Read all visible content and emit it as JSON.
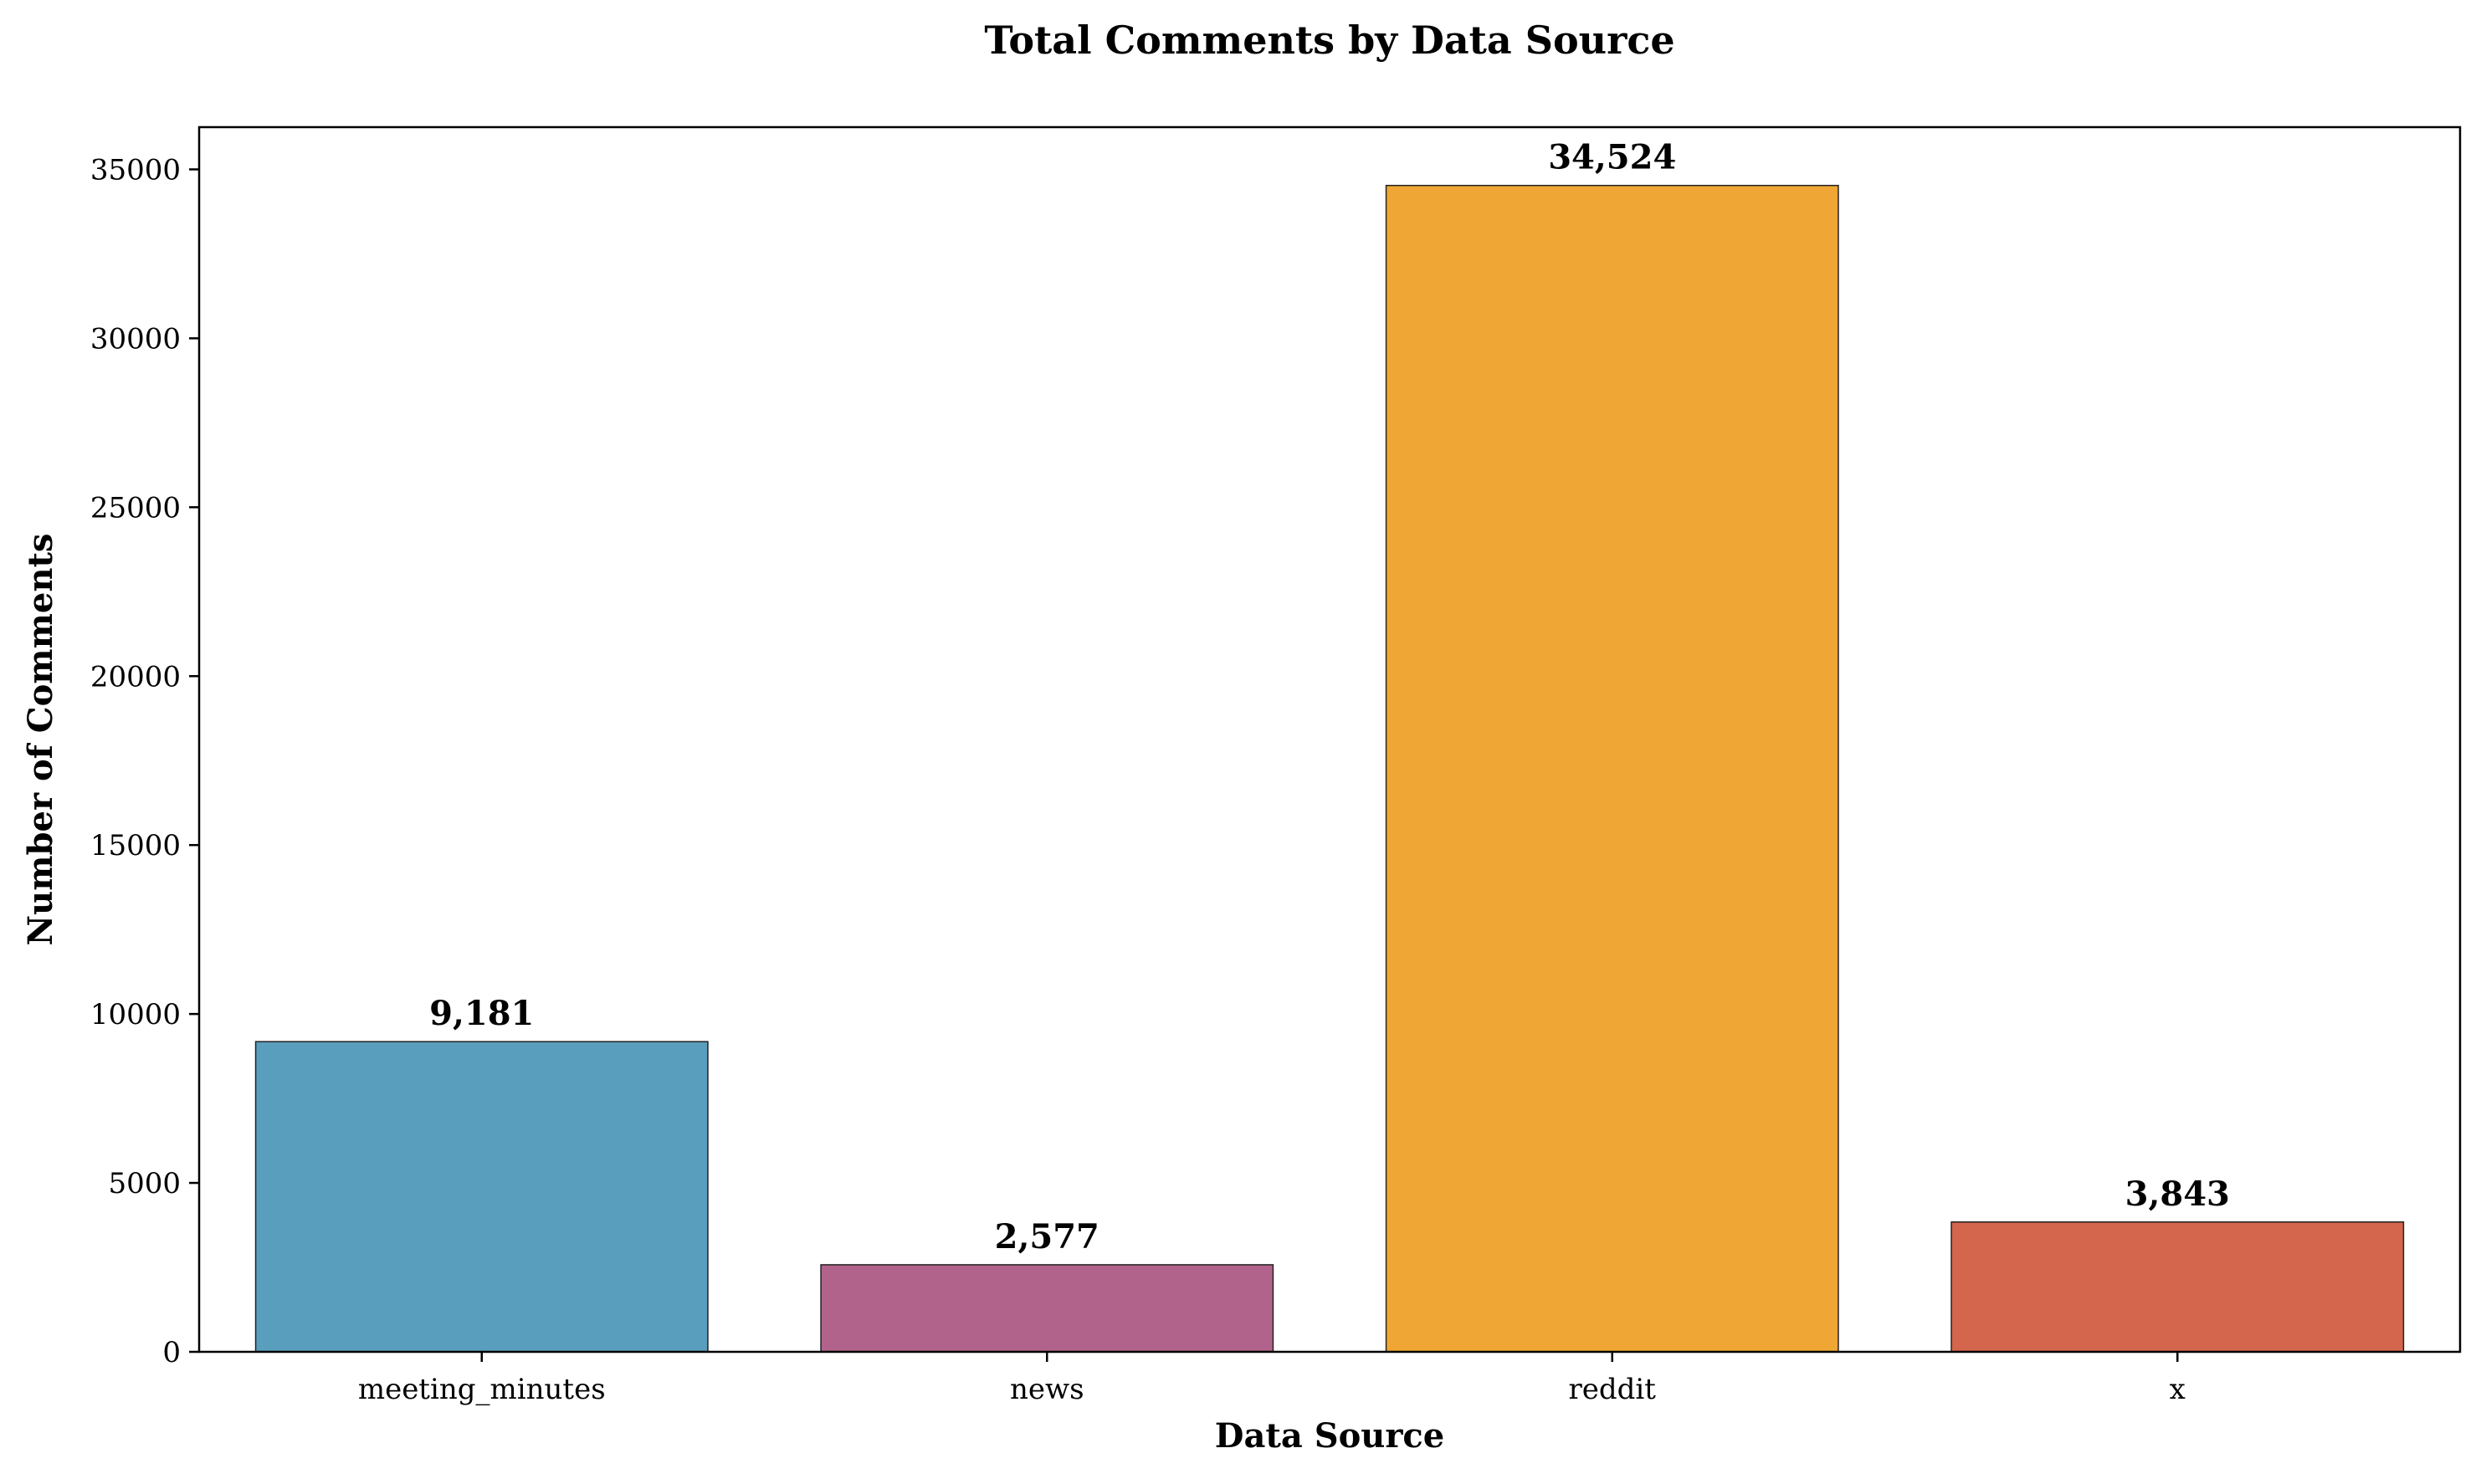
{
  "chart_data": {
    "type": "bar",
    "title": "Total Comments by Data Source",
    "xlabel": "Data Source",
    "ylabel": "Number of Comments",
    "categories": [
      "meeting_minutes",
      "news",
      "reddit",
      "x"
    ],
    "values": [
      9181,
      2577,
      34524,
      3843
    ],
    "value_labels": [
      "9,181",
      "2,577",
      "34,524",
      "3,843"
    ],
    "colors": [
      "#5a9ebd",
      "#b1638b",
      "#f0a634",
      "#d3664d"
    ],
    "ylim": [
      0,
      36250
    ],
    "yticks": [
      0,
      5000,
      10000,
      15000,
      20000,
      25000,
      30000,
      35000
    ],
    "ytick_labels": [
      "0",
      "5000",
      "10000",
      "15000",
      "20000",
      "25000",
      "30000",
      "35000"
    ],
    "grid": false,
    "legend": "none"
  }
}
